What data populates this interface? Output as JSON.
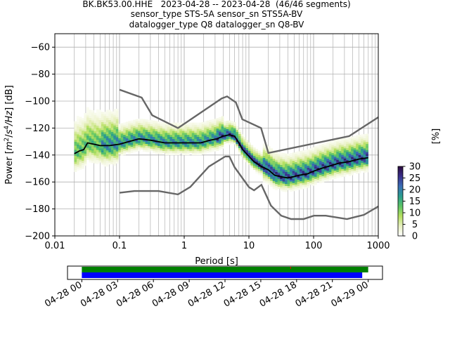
{
  "figure": {
    "title_lines": [
      "BK.BK53.00.HHE   2023-04-28 -- 2023-04-28  (46/46 segments)",
      "sensor_type STS-5A sensor_sn STS5A-BV",
      "datalogger_type Q8 datalogger_sn Q8-BV"
    ]
  },
  "chart_data": [
    {
      "type": "heatmap",
      "title": "BK.BK53.00.HHE   2023-04-28 -- 2023-04-28  (46/46 segments)",
      "xlabel": "Period [s]",
      "ylabel": "Power [m^2/s^4/Hz] [dB]",
      "ylabel_parts": {
        "pre": "Power [",
        "m": "m",
        "sq": "2",
        "slash": "/",
        "s": "s",
        "four": "4",
        "hz": "/Hz",
        "post": "] [dB]"
      },
      "x_scale": "log",
      "xlim": [
        0.01,
        1000
      ],
      "ylim": [
        -200,
        -50
      ],
      "x_ticks": [
        0.01,
        0.1,
        1,
        10,
        100,
        1000
      ],
      "x_tick_labels": [
        "0.01",
        "0.1",
        "1",
        "10",
        "100",
        "1000"
      ],
      "y_ticks": [
        -200,
        -180,
        -160,
        -140,
        -120,
        -100,
        -80,
        -60
      ],
      "y_tick_labels": [
        "−200",
        "−180",
        "−160",
        "−140",
        "−120",
        "−100",
        "−80",
        "−60"
      ],
      "grid": true,
      "colorbar": {
        "label": "[%]",
        "range": [
          0,
          30
        ],
        "ticks": [
          0,
          5,
          10,
          15,
          20,
          25,
          30
        ],
        "tick_labels": [
          "0",
          "5",
          "10",
          "15",
          "20",
          "25",
          "30"
        ],
        "colormap": "pqlx",
        "colors": [
          "#ffffff",
          "#e8f0c0",
          "#b6e060",
          "#5cc466",
          "#2a9d8f",
          "#3a6db5",
          "#3a2f8c",
          "#2b0a3d"
        ]
      },
      "mode_line": {
        "name": "mode",
        "color": "#000000",
        "period": [
          0.02,
          0.024,
          0.028,
          0.032,
          0.04,
          0.05,
          0.07,
          0.1,
          0.14,
          0.2,
          0.3,
          0.5,
          0.8,
          1.2,
          1.8,
          2.5,
          3.2,
          4.0,
          5.0,
          6.0,
          7.0,
          8.0,
          10,
          12,
          15,
          20,
          25,
          30,
          40,
          50,
          60,
          80,
          100,
          130,
          180,
          250,
          350,
          500,
          700
        ],
        "power": [
          -139,
          -137,
          -136,
          -131,
          -132,
          -133,
          -133,
          -132,
          -130,
          -128,
          -129,
          -131,
          -131,
          -131,
          -131,
          -129,
          -128,
          -126,
          -125,
          -126,
          -131,
          -136,
          -141,
          -145,
          -148,
          -151,
          -155,
          -156,
          -157,
          -156,
          -155,
          -154,
          -152,
          -150,
          -148,
          -146,
          -145,
          -143,
          -142
        ]
      },
      "noise_models": {
        "color": "#666666",
        "high": {
          "period": [
            0.1,
            0.22,
            0.32,
            0.8,
            3.8,
            4.6,
            6.3,
            7.9,
            15.4,
            20,
            354.8,
            1000
          ],
          "power": [
            -91.5,
            -97.4,
            -110.5,
            -120,
            -98,
            -96.5,
            -101,
            -113.5,
            -120,
            -138.5,
            -126,
            -112
          ]
        },
        "low": {
          "period": [
            0.1,
            0.17,
            0.4,
            0.8,
            1.24,
            2.4,
            4.3,
            5.0,
            6.0,
            10.0,
            12.0,
            15.6,
            21.9,
            31.6,
            45.0,
            70.0,
            101.0,
            154.0,
            328.0,
            600.0,
            1000.0
          ],
          "power": [
            -168,
            -166.7,
            -166.7,
            -169.2,
            -163.7,
            -148.6,
            -141.1,
            -141.1,
            -149.0,
            -163.8,
            -166.2,
            -162.1,
            -177.5,
            -185.0,
            -187.5,
            -187.5,
            -185.0,
            -185.0,
            -187.5,
            -184.4,
            -178.1
          ]
        }
      }
    },
    {
      "type": "bar",
      "title": "",
      "x_tick_labels": [
        "04-28 00",
        "04-28 03",
        "04-28 06",
        "04-28 09",
        "04-28 12",
        "04-28 15",
        "04-28 18",
        "04-28 21",
        "04-29 00"
      ],
      "series": [
        {
          "color": "#008000",
          "coverage_start_hour": 0.0,
          "coverage_end_hour": 24.0,
          "row": 0
        },
        {
          "color": "#0000ff",
          "coverage_start_hour": 0.0,
          "coverage_end_hour": 23.5,
          "row": 1
        }
      ],
      "gap_marker_hour": 17.5,
      "gap_marker_color": "#ff0000",
      "xlim_hours": [
        -1.2,
        25.2
      ]
    }
  ]
}
